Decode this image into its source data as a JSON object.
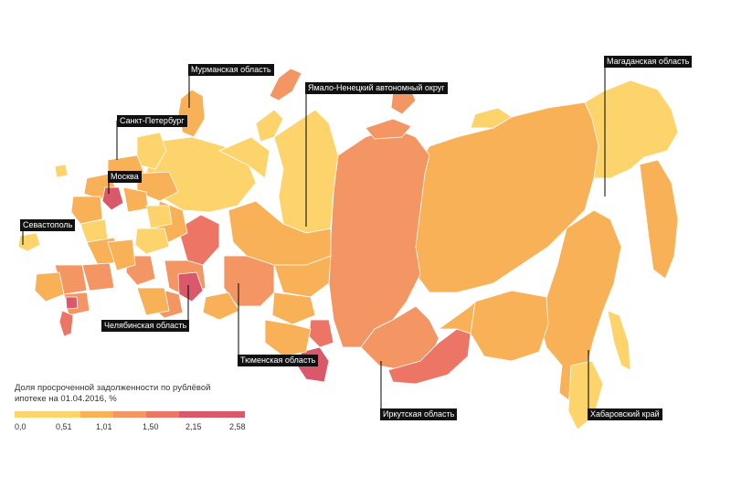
{
  "legend": {
    "title_line1": "Доля просроченной задолженности по рублёвой",
    "title_line2": "ипотеке на 01.04.2016, %",
    "ticks": [
      "0,0",
      "0,51",
      "1,01",
      "1,50",
      "2,15",
      "2,58"
    ],
    "colors": [
      "#fdd36c",
      "#f9b157",
      "#f49564",
      "#ec7566",
      "#d9596a"
    ]
  },
  "callouts": {
    "murmansk": "Мурманская область",
    "spb": "Санкт-Петербург",
    "moscow": "Москва",
    "sevastopol": "Севастополь",
    "chelyabinsk": "Челябинская область",
    "yamal": "Ямало-Ненецкий автономный округ",
    "tyumen": "Тюменская область",
    "irkutsk": "Иркутская область",
    "magadan": "Магаданская область",
    "khabarovsk": "Хабаровский край"
  }
}
